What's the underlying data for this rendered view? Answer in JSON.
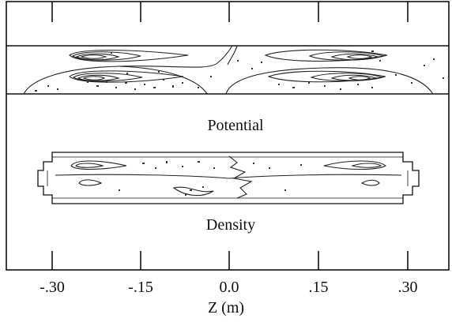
{
  "figure": {
    "potential_label": "Potential",
    "density_label": "Density",
    "axis": {
      "label": "Z (m)",
      "ticks": [
        {
          "value": -0.3,
          "label": "-.30"
        },
        {
          "value": -0.15,
          "label": "-.15"
        },
        {
          "value": 0.0,
          "label": "0.0"
        },
        {
          "value": 0.15,
          "label": ".15"
        },
        {
          "value": 0.3,
          "label": ".30"
        }
      ]
    }
  },
  "colors": {
    "ink": "#111111",
    "background": "#ffffff"
  }
}
